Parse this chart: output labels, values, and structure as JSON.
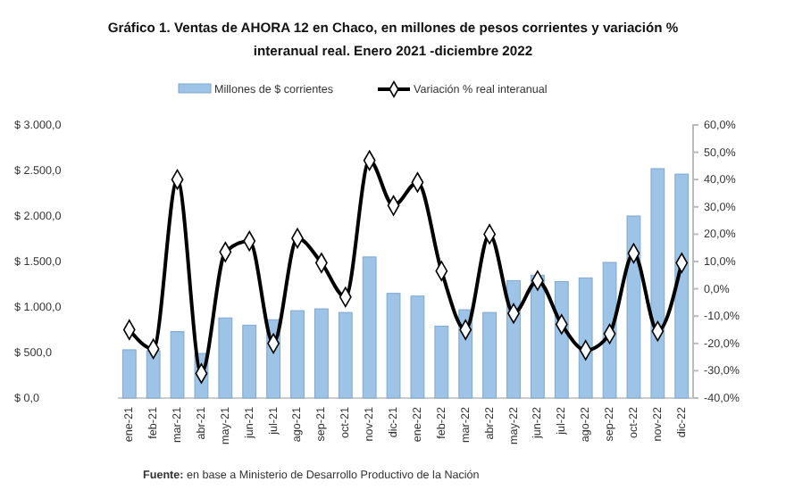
{
  "chart_data": {
    "type": "bar",
    "title": "Gráfico 1. Ventas de AHORA 12 en Chaco, en millones de pesos corrientes y variación % interanual real. Enero 2021 -diciembre 2022",
    "categories": [
      "ene-21",
      "feb-21",
      "mar-21",
      "abr-21",
      "may-21",
      "jun-21",
      "jul-21",
      "ago-21",
      "sep-21",
      "oct-21",
      "nov-21",
      "dic-21",
      "ene-22",
      "feb-22",
      "mar-22",
      "abr-22",
      "may-22",
      "jun-22",
      "jul-22",
      "ago-22",
      "sep-22",
      "oct-22",
      "nov-22",
      "dic-22"
    ],
    "series": [
      {
        "name": "Millones de $ corrientes",
        "color": "#9dc3e6",
        "values": [
          530,
          520,
          730,
          490,
          880,
          800,
          860,
          960,
          980,
          940,
          1550,
          1150,
          1120,
          790,
          970,
          940,
          1290,
          1350,
          1280,
          1320,
          1490,
          2000,
          2520,
          2460
        ]
      },
      {
        "name": "Variación % real interanual",
        "type": "line",
        "axis": "y2",
        "color": "#000000",
        "marker": "diamond",
        "values": [
          -15,
          -22,
          40,
          -31,
          13.5,
          17.5,
          -20,
          18.5,
          9.5,
          -3,
          47,
          30.5,
          39,
          6.5,
          -15,
          20,
          -9,
          3,
          -13,
          -22.5,
          -16.5,
          13,
          -15.5,
          9.5
        ]
      }
    ],
    "ylim": [
      0,
      3000
    ],
    "yticks": [
      {
        "value": 0,
        "label": "$ 0,0"
      },
      {
        "value": 500,
        "label": "$ 500,0"
      },
      {
        "value": 1000,
        "label": "$ 1.000,0"
      },
      {
        "value": 1500,
        "label": "$ 1.500,0"
      },
      {
        "value": 2000,
        "label": "$ 2.000,0"
      },
      {
        "value": 2500,
        "label": "$ 2.500,0"
      },
      {
        "value": 3000,
        "label": "$ 3.000,0"
      }
    ],
    "y2lim": [
      -40,
      60
    ],
    "y2ticks": [
      {
        "value": -40,
        "label": "-40,0%"
      },
      {
        "value": -30,
        "label": "-30,0%"
      },
      {
        "value": -20,
        "label": "-20,0%"
      },
      {
        "value": -10,
        "label": "-10,0%"
      },
      {
        "value": 0,
        "label": "0,0%"
      },
      {
        "value": 10,
        "label": "10,0%"
      },
      {
        "value": 20,
        "label": "20,0%"
      },
      {
        "value": 30,
        "label": "30,0%"
      },
      {
        "value": 40,
        "label": "40,0%"
      },
      {
        "value": 50,
        "label": "50,0%"
      },
      {
        "value": 60,
        "label": "60,0%"
      }
    ],
    "legend": "top",
    "annotations": [
      "Fuente: en base a Ministerio de Desarrollo Productivo de la Nación"
    ]
  }
}
